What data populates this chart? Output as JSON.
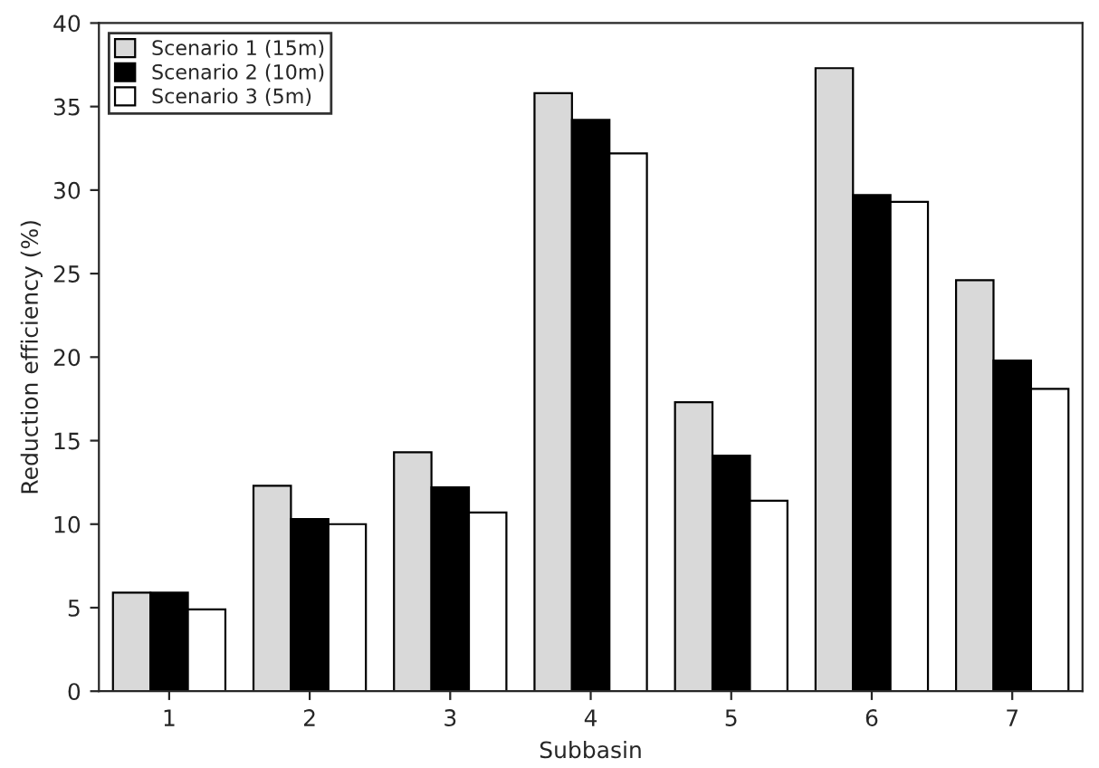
{
  "chart_data": {
    "type": "bar",
    "xlabel": "Subbasin",
    "ylabel": "Reduction efficiency (%)",
    "categories": [
      "1",
      "2",
      "3",
      "4",
      "5",
      "6",
      "7"
    ],
    "series": [
      {
        "name": "Scenario 1 (15m)",
        "color": "#d9d9d9",
        "values": [
          5.9,
          12.3,
          14.3,
          35.8,
          17.3,
          37.3,
          24.6
        ]
      },
      {
        "name": "Scenario 2 (10m)",
        "color": "#000000",
        "values": [
          5.9,
          10.3,
          12.2,
          34.2,
          14.1,
          29.7,
          19.8
        ]
      },
      {
        "name": "Scenario 3 (5m)",
        "color": "#ffffff",
        "values": [
          4.9,
          10.0,
          10.7,
          32.2,
          11.4,
          29.3,
          18.1
        ]
      }
    ],
    "ylim": [
      0,
      40
    ],
    "yticks": [
      0,
      5,
      10,
      15,
      20,
      25,
      30,
      35,
      40
    ],
    "grid": false,
    "legend": "top left"
  }
}
